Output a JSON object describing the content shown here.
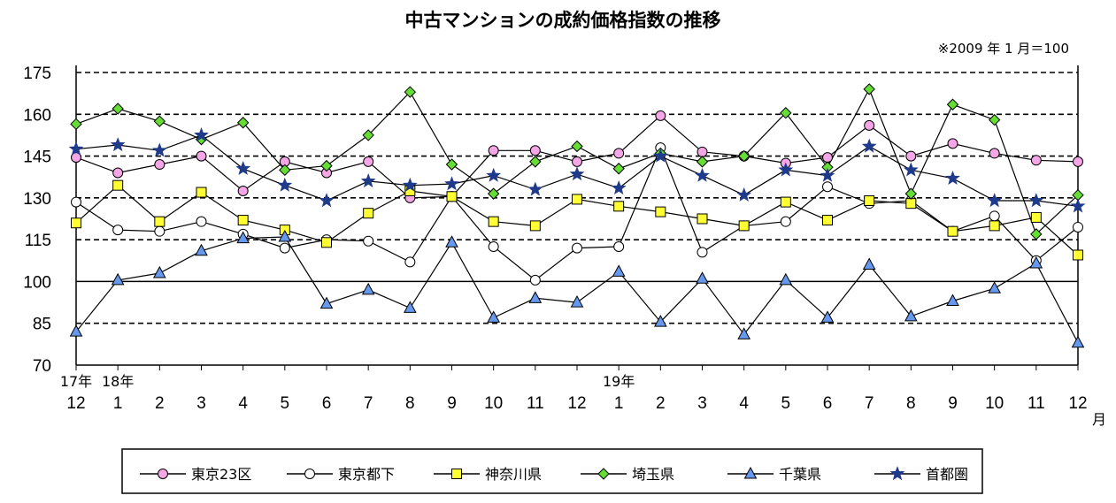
{
  "chart_data": {
    "type": "line",
    "title": "中古マンションの成約価格指数の推移",
    "note": "※2009 年 1 月＝100",
    "categories": [
      "12",
      "1",
      "2",
      "3",
      "4",
      "5",
      "6",
      "7",
      "8",
      "9",
      "10",
      "11",
      "12",
      "1",
      "2",
      "3",
      "4",
      "5",
      "6",
      "7",
      "8",
      "9",
      "10",
      "11",
      "12"
    ],
    "year_labels": [
      {
        "index": 0,
        "text": "17年"
      },
      {
        "index": 1,
        "text": "18年"
      },
      {
        "index": 13,
        "text": "19年"
      }
    ],
    "x_unit": "月",
    "ylim": [
      70,
      175
    ],
    "yticks": [
      "70",
      "85",
      "100",
      "115",
      "130",
      "145",
      "160",
      "175"
    ],
    "gridlines": "dashed at each tick; solid at 100",
    "legend_position": "bottom",
    "series": [
      {
        "name": "東京23区",
        "marker": "circle",
        "color": "#f4a6e6",
        "values": [
          144.5,
          139,
          142,
          145,
          132.5,
          143,
          139,
          143,
          130,
          130.5,
          147,
          147,
          143,
          146,
          159.5,
          146.5,
          145,
          142.5,
          144.5,
          156,
          145,
          149.5,
          146,
          143.5,
          143
        ]
      },
      {
        "name": "東京都下",
        "marker": "open-circle",
        "color": "#ffffff",
        "values": [
          128.5,
          118.5,
          118,
          121.5,
          117,
          112,
          115,
          114.5,
          107,
          130.5,
          112.5,
          100.5,
          112,
          112.5,
          148,
          110.5,
          120,
          121.5,
          134,
          128,
          129,
          118,
          123.5,
          107.5,
          119.5
        ]
      },
      {
        "name": "神奈川県",
        "marker": "square",
        "color": "#ffff33",
        "values": [
          121,
          134.5,
          121.5,
          132,
          122,
          118.5,
          114,
          124.5,
          132.5,
          130.5,
          121.5,
          120,
          129.5,
          127,
          125,
          122.5,
          120,
          128.5,
          122,
          129,
          128,
          118,
          120,
          123,
          109.5
        ]
      },
      {
        "name": "埼玉県",
        "marker": "diamond",
        "color": "#66dd33",
        "values": [
          156.5,
          162,
          157.5,
          151,
          157,
          140,
          141.5,
          152.5,
          168,
          142,
          131.5,
          143,
          148.5,
          140.5,
          146,
          143,
          145,
          160.5,
          141,
          169,
          131.5,
          163.5,
          158,
          117,
          131
        ]
      },
      {
        "name": "千葉県",
        "marker": "triangle",
        "color": "#6699ee",
        "values": [
          82,
          100.5,
          103,
          111,
          115.5,
          116,
          92,
          97,
          90.5,
          114,
          87,
          94,
          92.5,
          103.5,
          85.5,
          101,
          81,
          100.5,
          87,
          106,
          87.5,
          93,
          97.5,
          106.5,
          78
        ]
      },
      {
        "name": "首都圏",
        "marker": "star",
        "color": "#1f3a8a",
        "values": [
          147.5,
          149,
          147,
          152.5,
          140.5,
          134.5,
          129,
          136,
          134.5,
          135,
          138,
          133,
          138.5,
          133.5,
          145,
          138,
          131,
          140,
          138,
          148.5,
          140,
          137,
          129,
          129,
          127
        ]
      }
    ]
  }
}
